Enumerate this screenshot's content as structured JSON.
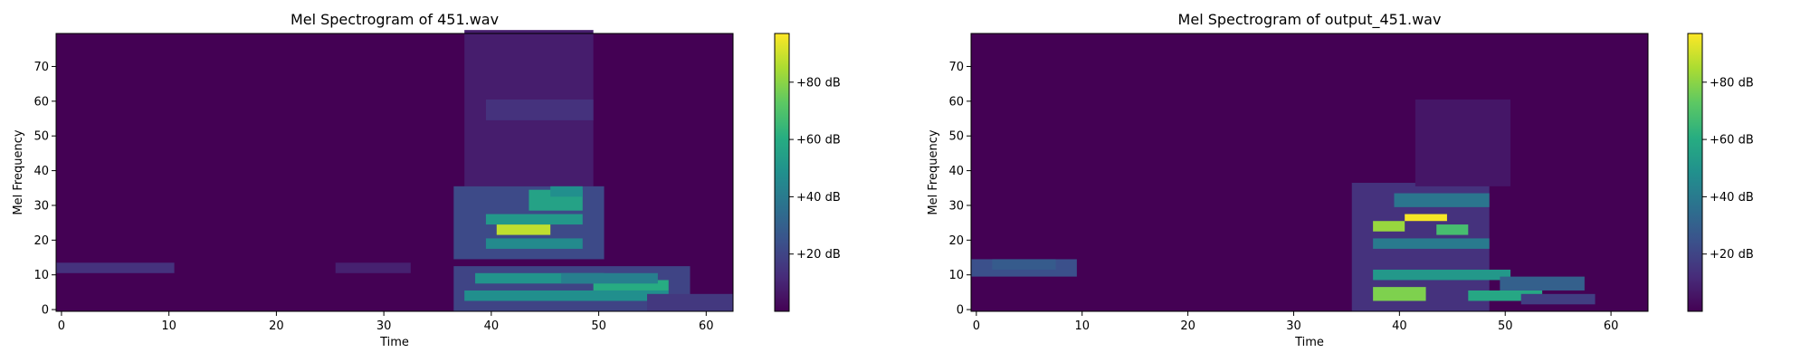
{
  "chart_data": [
    {
      "type": "heatmap",
      "title": "Mel Spectrogram of 451.wav",
      "xlabel": "Time",
      "ylabel": "Mel Frequency",
      "xlim": [
        -0.5,
        62.5
      ],
      "ylim": [
        -0.5,
        79.5
      ],
      "xticks": [
        0,
        10,
        20,
        30,
        40,
        50,
        60
      ],
      "yticks": [
        0,
        10,
        20,
        30,
        40,
        50,
        60,
        70
      ],
      "n_frames": 63,
      "n_mels": 80,
      "colormap": "viridis",
      "colorbar": {
        "range": [
          0,
          97
        ],
        "ticks": [
          20,
          40,
          60,
          80
        ],
        "tick_labels": [
          "+20 dB",
          "+40 dB",
          "+60 dB",
          "+80 dB"
        ]
      },
      "features": [
        {
          "t": [
            0,
            10
          ],
          "f": [
            11,
            13
          ],
          "value": 14
        },
        {
          "t": [
            26,
            32
          ],
          "f": [
            11,
            13
          ],
          "value": 9
        },
        {
          "t": [
            38,
            49
          ],
          "f": [
            36,
            80
          ],
          "value": 8
        },
        {
          "t": [
            40,
            49
          ],
          "f": [
            55,
            60
          ],
          "value": 14
        },
        {
          "t": [
            37,
            50
          ],
          "f": [
            15,
            35
          ],
          "value": 22
        },
        {
          "t": [
            37,
            58
          ],
          "f": [
            0,
            12
          ],
          "value": 20
        },
        {
          "t": [
            41,
            45
          ],
          "f": [
            22,
            24
          ],
          "value": 88
        },
        {
          "t": [
            40,
            48
          ],
          "f": [
            18,
            20
          ],
          "value": 46
        },
        {
          "t": [
            40,
            48
          ],
          "f": [
            25,
            27
          ],
          "value": 52
        },
        {
          "t": [
            44,
            48
          ],
          "f": [
            29,
            34
          ],
          "value": 56
        },
        {
          "t": [
            46,
            48
          ],
          "f": [
            33,
            35
          ],
          "value": 48
        },
        {
          "t": [
            38,
            56
          ],
          "f": [
            3,
            5
          ],
          "value": 48
        },
        {
          "t": [
            39,
            50
          ],
          "f": [
            8,
            10
          ],
          "value": 50
        },
        {
          "t": [
            50,
            56
          ],
          "f": [
            6,
            8
          ],
          "value": 60
        },
        {
          "t": [
            47,
            55
          ],
          "f": [
            8,
            10
          ],
          "value": 42
        },
        {
          "t": [
            55,
            62
          ],
          "f": [
            0,
            4
          ],
          "value": 16
        }
      ]
    },
    {
      "type": "heatmap",
      "title": "Mel Spectrogram of output_451.wav",
      "xlabel": "Time",
      "ylabel": "Mel Frequency",
      "xlim": [
        -0.5,
        63.5
      ],
      "ylim": [
        -0.5,
        79.5
      ],
      "xticks": [
        0,
        10,
        20,
        30,
        40,
        50,
        60
      ],
      "yticks": [
        0,
        10,
        20,
        30,
        40,
        50,
        60,
        70
      ],
      "n_frames": 64,
      "n_mels": 80,
      "colormap": "viridis",
      "colorbar": {
        "range": [
          0,
          97
        ],
        "ticks": [
          20,
          40,
          60,
          80
        ],
        "tick_labels": [
          "+20 dB",
          "+40 dB",
          "+60 dB",
          "+80 dB"
        ]
      },
      "features": [
        {
          "t": [
            0,
            9
          ],
          "f": [
            10,
            14
          ],
          "value": 24
        },
        {
          "t": [
            2,
            7
          ],
          "f": [
            12,
            14
          ],
          "value": 28
        },
        {
          "t": [
            36,
            48
          ],
          "f": [
            0,
            36
          ],
          "value": 14
        },
        {
          "t": [
            42,
            50
          ],
          "f": [
            36,
            60
          ],
          "value": 6
        },
        {
          "t": [
            41,
            44
          ],
          "f": [
            26,
            27
          ],
          "value": 96
        },
        {
          "t": [
            38,
            40
          ],
          "f": [
            23,
            25
          ],
          "value": 82
        },
        {
          "t": [
            44,
            46
          ],
          "f": [
            22,
            24
          ],
          "value": 68
        },
        {
          "t": [
            38,
            48
          ],
          "f": [
            18,
            20
          ],
          "value": 40
        },
        {
          "t": [
            40,
            48
          ],
          "f": [
            30,
            33
          ],
          "value": 38
        },
        {
          "t": [
            38,
            50
          ],
          "f": [
            9,
            11
          ],
          "value": 52
        },
        {
          "t": [
            38,
            42
          ],
          "f": [
            3,
            6
          ],
          "value": 78
        },
        {
          "t": [
            47,
            53
          ],
          "f": [
            3,
            5
          ],
          "value": 58
        },
        {
          "t": [
            50,
            57
          ],
          "f": [
            6,
            9
          ],
          "value": 30
        },
        {
          "t": [
            52,
            58
          ],
          "f": [
            2,
            4
          ],
          "value": 18
        }
      ]
    }
  ]
}
